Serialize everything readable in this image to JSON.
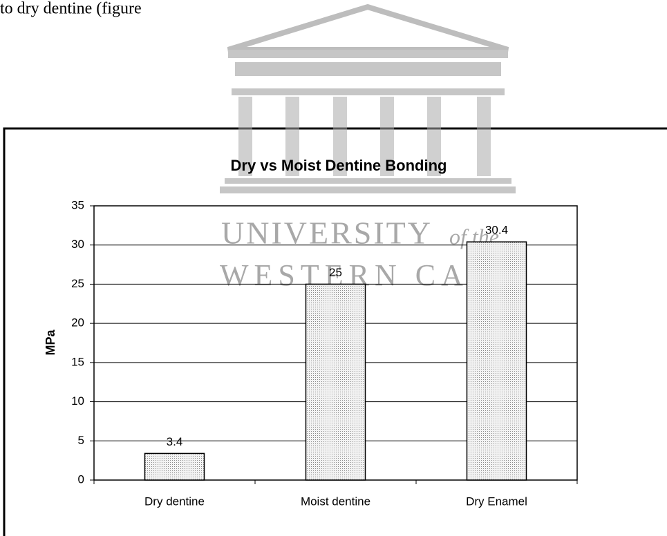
{
  "page_text": "ng to dry dentine (figure",
  "watermark": {
    "line1": "UNIVERSITY",
    "line1_small": "of the",
    "line2": "WESTERN CAPE"
  },
  "chart_data": {
    "type": "bar",
    "title": "Dry vs Moist Dentine Bonding",
    "y_label": "MPa",
    "categories": [
      "Dry dentine",
      "Moist dentine",
      "Dry Enamel"
    ],
    "values": [
      3.4,
      25,
      30.4
    ],
    "color": "#d9d9d9",
    "ylim": [
      0,
      35
    ],
    "yticks": [
      0,
      5,
      10,
      15,
      20,
      25,
      30,
      35
    ],
    "grid": true
  }
}
